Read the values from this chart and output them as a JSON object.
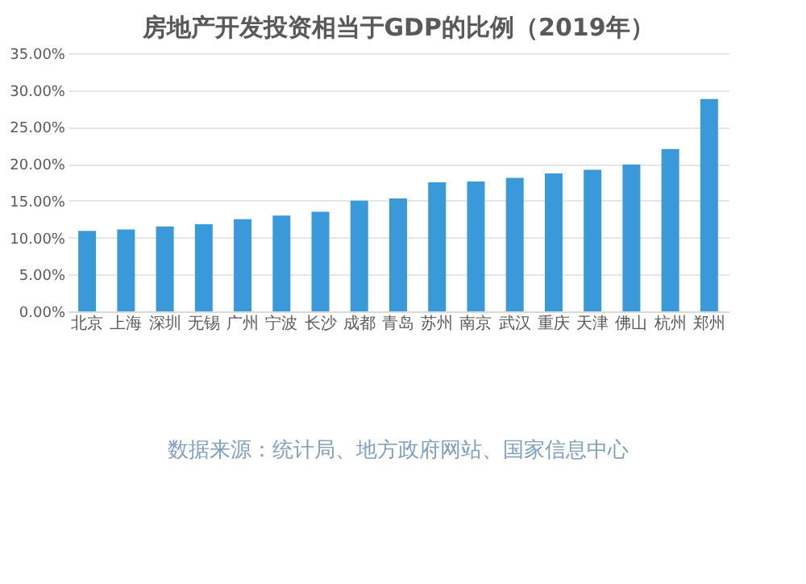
{
  "chart_data": {
    "type": "bar",
    "title": "房地产开发投资相当于GDP的比例（2019年）",
    "categories": [
      "北京",
      "上海",
      "深圳",
      "无锡",
      "广州",
      "宁波",
      "长沙",
      "成都",
      "青岛",
      "苏州",
      "南京",
      "武汉",
      "重庆",
      "天津",
      "佛山",
      "杭州",
      "郑州"
    ],
    "values": [
      10.9,
      11.1,
      11.5,
      11.8,
      12.5,
      13.0,
      13.5,
      15.0,
      15.3,
      17.5,
      17.6,
      18.1,
      18.7,
      19.2,
      19.9,
      22.0,
      28.8
    ],
    "color": "#3a9ad9",
    "ylim": [
      0,
      35
    ],
    "yticks": [
      {
        "value": 0,
        "label": "0.00%"
      },
      {
        "value": 5,
        "label": "5.00%"
      },
      {
        "value": 10,
        "label": "10.00%"
      },
      {
        "value": 15,
        "label": "15.00%"
      },
      {
        "value": 20,
        "label": "20.00%"
      },
      {
        "value": 25,
        "label": "25.00%"
      },
      {
        "value": 30,
        "label": "30.00%"
      },
      {
        "value": 35,
        "label": "35.00%"
      }
    ],
    "grid": "y",
    "annotations": [
      "数据来源：统计局、地方政府网站、国家信息中心"
    ]
  }
}
